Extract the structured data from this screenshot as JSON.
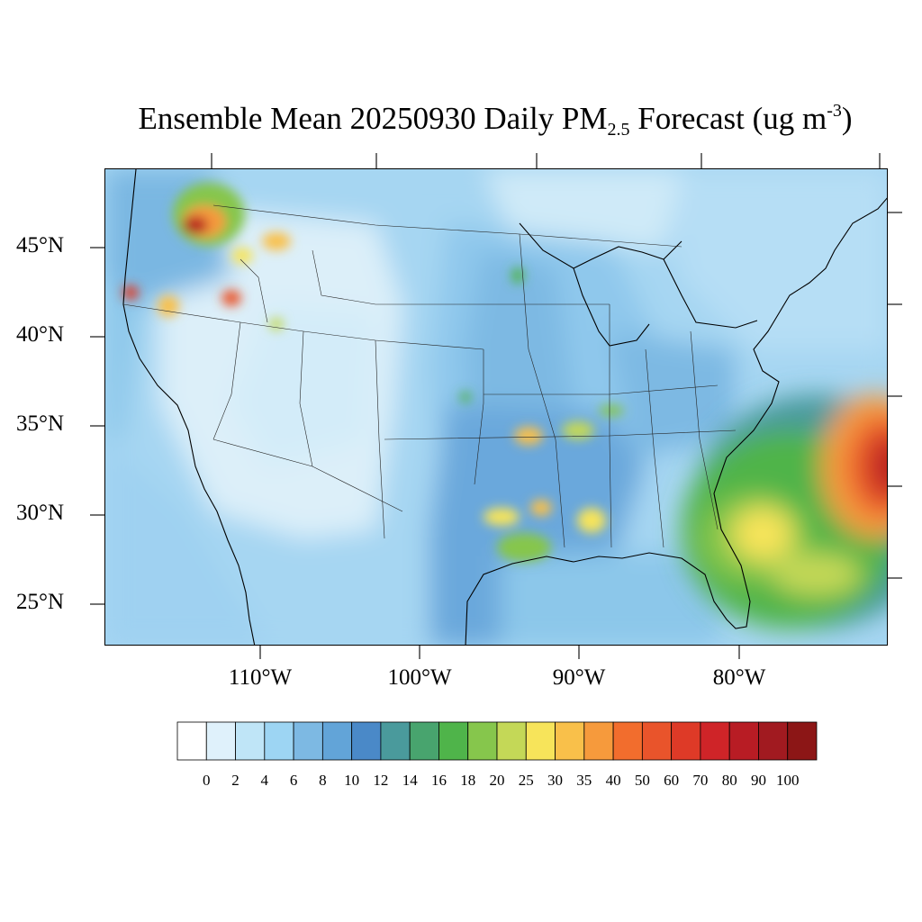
{
  "title": {
    "prefix": "Ensemble Mean 20250930 Daily PM",
    "subscript": "2.5",
    "middle": " Forecast (ug m",
    "superscript": "-3",
    "suffix": ")"
  },
  "latitude_labels": [
    "45°N",
    "40°N",
    "35°N",
    "30°N",
    "25°N"
  ],
  "longitude_labels": [
    "110°W",
    "100°W",
    "90°W",
    "80°W"
  ],
  "legend": {
    "levels": [
      "0",
      "2",
      "4",
      "6",
      "8",
      "10",
      "12",
      "14",
      "16",
      "18",
      "20",
      "25",
      "30",
      "35",
      "40",
      "50",
      "60",
      "70",
      "80",
      "90",
      "100"
    ],
    "colors": [
      "#ffffff",
      "#dff1fb",
      "#bfe5f7",
      "#9dd5f3",
      "#7db9e3",
      "#62a4d8",
      "#4a89c8",
      "#4a9a9c",
      "#48a46e",
      "#4fb44a",
      "#86c64c",
      "#c4d857",
      "#f7e45a",
      "#f9c04a",
      "#f69a3c",
      "#f26d2d",
      "#e9542b",
      "#de3a27",
      "#cf2428",
      "#b81c24",
      "#a11a20",
      "#8c1616"
    ]
  }
}
